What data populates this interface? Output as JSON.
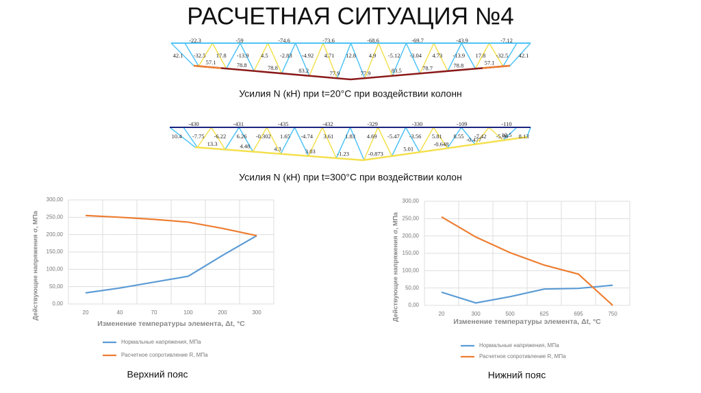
{
  "title": "РАСЧЕТНАЯ СИТУАЦИЯ №4",
  "trusses": [
    {
      "caption": "Усилия N (кН) при t=20°C при воздействии колонн",
      "top": [
        "-22.3",
        "-59",
        "-74.6",
        "-73.6",
        "-68.6",
        "-69.7",
        "-43.9",
        "-7.12"
      ],
      "middle": [
        "42.1",
        "-32.5",
        "17.8",
        "-13.9",
        "4.5",
        "-2.83",
        "-4.92",
        "4.71",
        "12.8",
        "4.9",
        "-5.12",
        "-3.04",
        "4.73",
        "-13.9",
        "17.8",
        "-32.5",
        "42.1"
      ],
      "bottom": [
        "57.1",
        "78.8",
        "78.8",
        "83.2",
        "77.9",
        "77.9",
        "83.5",
        "78.7",
        "78.8",
        "57.1"
      ]
    },
    {
      "caption": "Усилия N (кН) при t=300°C при воздействии колон",
      "top": [
        "-430",
        "-431",
        "-435",
        "-432",
        "-329",
        "-330",
        "-109",
        "-110"
      ],
      "middle": [
        "10.4",
        "-7.75",
        "-6.22",
        "6.26",
        "-0.302",
        "1.65",
        "-4.74",
        "3.61",
        "1.83",
        "4.69",
        "-5.47",
        "-3.56",
        "5.81",
        "8.55",
        "-7.42",
        "-5.96",
        "8.13"
      ],
      "bottom": [
        "13.3",
        "4.48",
        "4.3",
        "3.03",
        "-1.23",
        "-0.873",
        "5.01",
        "-0.648",
        "-0.477",
        "10.5"
      ]
    }
  ],
  "chart_data": [
    {
      "type": "line",
      "caption": "Верхний пояс",
      "x_label": "Изменение температуры элемента, Δt, °C",
      "y_label": "Действующие напряжения σ, МПа",
      "categories": [
        "20",
        "40",
        "70",
        "100",
        "200",
        "300"
      ],
      "series": [
        {
          "name": "Нормальные напряжения, МПа",
          "color": "#5b9bd5",
          "values": [
            32,
            46,
            63,
            80,
            140,
            197
          ]
        },
        {
          "name": "Расчетное сопротивление R, МПа",
          "color": "#ed7d31",
          "values": [
            255,
            250,
            244,
            236,
            218,
            197
          ]
        }
      ],
      "ylim": [
        0,
        300
      ],
      "yticks": [
        {
          "value": 0,
          "label": "0,00"
        },
        {
          "value": 50,
          "label": "50,00"
        },
        {
          "value": 100,
          "label": "100,00"
        },
        {
          "value": 150,
          "label": "150,00"
        },
        {
          "value": 200,
          "label": "200,00"
        },
        {
          "value": 250,
          "label": "250,00"
        },
        {
          "value": 300,
          "label": "300,00"
        }
      ],
      "grid": true,
      "legend": "bottom"
    },
    {
      "type": "line",
      "caption": "Нижний пояс",
      "x_label": "Изменение температуры элемента, Δt, °C",
      "y_label": "Действующие напряжения σ, МПа",
      "categories": [
        "20",
        "300",
        "500",
        "625",
        "695",
        "750"
      ],
      "series": [
        {
          "name": "Нормальные напряжения, МПа",
          "color": "#5b9bd5",
          "values": [
            38,
            7,
            25,
            47,
            49,
            58
          ]
        },
        {
          "name": "Расчетное сопротивление R, МПа",
          "color": "#ed7d31",
          "values": [
            255,
            197,
            152,
            116,
            90,
            0
          ]
        }
      ],
      "ylim": [
        0,
        300
      ],
      "yticks": [
        {
          "value": 0,
          "label": "0,00"
        },
        {
          "value": 50,
          "label": "50,00"
        },
        {
          "value": 100,
          "label": "100,00"
        },
        {
          "value": 150,
          "label": "150,00"
        },
        {
          "value": 200,
          "label": "200,00"
        },
        {
          "value": 250,
          "label": "250,00"
        },
        {
          "value": 300,
          "label": "300,00"
        }
      ],
      "grid": true,
      "legend": "bottom"
    }
  ]
}
